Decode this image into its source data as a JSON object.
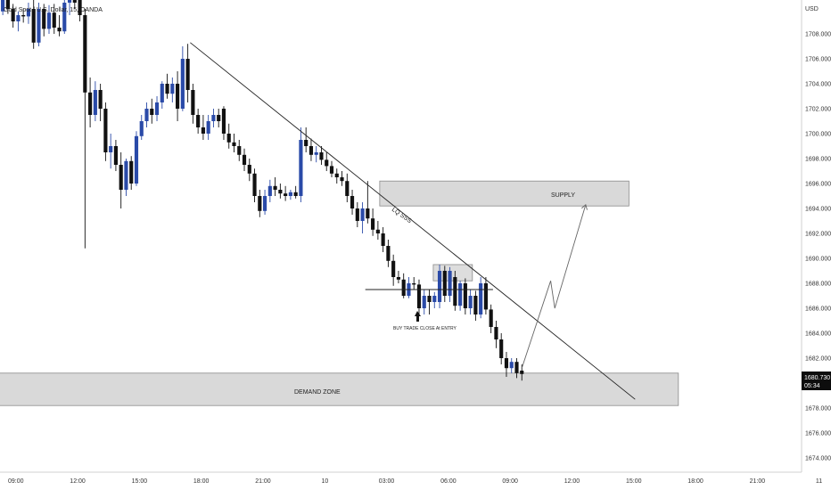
{
  "header": {
    "symbol_title": "Gold Spot / U.S. Dollar, 15, OANDA"
  },
  "price_axis": {
    "currency": "USD",
    "ticks": [
      "1708.000",
      "1706.000",
      "1704.000",
      "1702.000",
      "1700.000",
      "1698.000",
      "1696.000",
      "1694.000",
      "1692.000",
      "1690.000",
      "1688.000",
      "1686.000",
      "1684.000",
      "1682.000",
      "1678.000",
      "1676.000",
      "1674.000"
    ],
    "current_price": "1680.730",
    "countdown": "05:34"
  },
  "time_axis": {
    "ticks": [
      "09:00",
      "12:00",
      "15:00",
      "18:00",
      "21:00",
      "10",
      "03:00",
      "06:00",
      "09:00",
      "12:00",
      "15:00",
      "18:00",
      "21:00",
      "11"
    ]
  },
  "annotations": {
    "supply_label": "SUPPLY",
    "demand_label": "DEMAND ZONE",
    "trendline_label": "LQ SSS",
    "entry_note": "BUY TRADE CLOSE At ENTRY"
  },
  "colors": {
    "up": "#2a4aa8",
    "down": "#111111",
    "zone": "#d9d9d9",
    "zone_border": "#8a8a8a",
    "price_tag": "#0d0d0d"
  },
  "chart_data": {
    "type": "candlestick",
    "title": "Gold Spot / U.S. Dollar, 15, OANDA",
    "y_unit": "USD",
    "ylim": [
      1673,
      1712
    ],
    "candles": [
      [
        1711.2,
        1711.8,
        1709.8,
        1710.5
      ],
      [
        1710.5,
        1711.0,
        1709.2,
        1709.8
      ],
      [
        1709.8,
        1711.5,
        1709.5,
        1711.0
      ],
      [
        1711.0,
        1711.6,
        1709.6,
        1710.0
      ],
      [
        1710.0,
        1710.4,
        1708.5,
        1709.0
      ],
      [
        1709.0,
        1709.8,
        1708.2,
        1709.5
      ],
      [
        1709.5,
        1710.0,
        1708.9,
        1709.4
      ],
      [
        1709.4,
        1710.5,
        1708.8,
        1710.0
      ],
      [
        1710.0,
        1711.0,
        1706.8,
        1707.3
      ],
      [
        1707.3,
        1710.5,
        1707.0,
        1710.0
      ],
      [
        1710.0,
        1710.4,
        1707.8,
        1708.4
      ],
      [
        1708.4,
        1710.3,
        1708.0,
        1709.7
      ],
      [
        1709.7,
        1710.4,
        1708.0,
        1708.5
      ],
      [
        1708.5,
        1709.5,
        1707.8,
        1708.2
      ],
      [
        1708.2,
        1710.8,
        1708.0,
        1710.5
      ],
      [
        1710.5,
        1711.5,
        1709.5,
        1711.0
      ],
      [
        1711.0,
        1711.8,
        1710.0,
        1710.5
      ],
      [
        1711.0,
        1711.5,
        1709.0,
        1709.5
      ],
      [
        1709.5,
        1710.0,
        1690.8,
        1703.3
      ],
      [
        1703.3,
        1704.5,
        1700.5,
        1701.5
      ],
      [
        1701.5,
        1704.2,
        1701.0,
        1703.5
      ],
      [
        1703.5,
        1704.0,
        1701.0,
        1702.0
      ],
      [
        1702.0,
        1702.5,
        1697.8,
        1698.5
      ],
      [
        1698.5,
        1700.0,
        1697.2,
        1699.0
      ],
      [
        1699.0,
        1699.5,
        1697.0,
        1697.5
      ],
      [
        1697.5,
        1698.5,
        1694.0,
        1695.5
      ],
      [
        1695.5,
        1698.0,
        1695.0,
        1697.8
      ],
      [
        1697.8,
        1698.2,
        1695.5,
        1696.0
      ],
      [
        1696.0,
        1700.2,
        1695.8,
        1699.8
      ],
      [
        1699.8,
        1701.5,
        1699.5,
        1701.0
      ],
      [
        1701.0,
        1702.5,
        1700.5,
        1702.0
      ],
      [
        1702.0,
        1702.8,
        1700.8,
        1701.5
      ],
      [
        1701.5,
        1703.0,
        1701.0,
        1702.5
      ],
      [
        1702.5,
        1704.2,
        1702.0,
        1704.0
      ],
      [
        1704.0,
        1704.8,
        1702.8,
        1703.2
      ],
      [
        1703.2,
        1704.5,
        1702.5,
        1704.0
      ],
      [
        1704.0,
        1705.0,
        1701.0,
        1702.0
      ],
      [
        1702.0,
        1707.0,
        1701.8,
        1706.0
      ],
      [
        1706.0,
        1707.2,
        1702.5,
        1703.5
      ],
      [
        1703.5,
        1704.0,
        1700.8,
        1701.5
      ],
      [
        1701.5,
        1702.0,
        1700.0,
        1700.5
      ],
      [
        1700.5,
        1701.5,
        1699.5,
        1700.0
      ],
      [
        1700.0,
        1701.5,
        1699.5,
        1701.0
      ],
      [
        1701.0,
        1702.0,
        1700.5,
        1701.5
      ],
      [
        1701.5,
        1702.0,
        1700.5,
        1701.0
      ],
      [
        1702.0,
        1702.2,
        1699.5,
        1700.0
      ],
      [
        1700.0,
        1700.8,
        1698.8,
        1699.3
      ],
      [
        1699.3,
        1700.0,
        1698.5,
        1699.0
      ],
      [
        1699.0,
        1699.5,
        1697.8,
        1698.3
      ],
      [
        1698.3,
        1698.8,
        1697.0,
        1697.5
      ],
      [
        1697.5,
        1698.0,
        1696.2,
        1696.8
      ],
      [
        1696.8,
        1697.2,
        1694.5,
        1695.0
      ],
      [
        1695.0,
        1695.5,
        1693.3,
        1693.8
      ],
      [
        1693.8,
        1695.5,
        1693.5,
        1695.0
      ],
      [
        1695.0,
        1696.3,
        1694.5,
        1695.8
      ],
      [
        1695.8,
        1696.5,
        1695.0,
        1695.5
      ],
      [
        1695.5,
        1696.0,
        1694.8,
        1695.2
      ],
      [
        1695.2,
        1695.8,
        1694.6,
        1695.0
      ],
      [
        1695.0,
        1695.5,
        1694.7,
        1695.3
      ],
      [
        1695.3,
        1695.8,
        1694.8,
        1695.0
      ],
      [
        1695.0,
        1700.5,
        1694.5,
        1699.5
      ],
      [
        1699.5,
        1700.5,
        1698.5,
        1699.0
      ],
      [
        1699.0,
        1699.6,
        1697.8,
        1698.3
      ],
      [
        1698.3,
        1699.0,
        1697.7,
        1698.5
      ],
      [
        1698.5,
        1699.0,
        1697.5,
        1697.9
      ],
      [
        1697.9,
        1698.5,
        1697.0,
        1697.4
      ],
      [
        1697.4,
        1697.8,
        1696.5,
        1696.8
      ],
      [
        1696.8,
        1697.2,
        1696.0,
        1696.5
      ],
      [
        1696.5,
        1697.0,
        1695.8,
        1696.2
      ],
      [
        1696.2,
        1696.8,
        1694.5,
        1695.0
      ],
      [
        1695.0,
        1695.5,
        1693.5,
        1694.0
      ],
      [
        1694.0,
        1694.5,
        1692.5,
        1693.0
      ],
      [
        1693.0,
        1694.5,
        1692.0,
        1694.0
      ],
      [
        1694.0,
        1696.2,
        1692.8,
        1693.2
      ],
      [
        1693.2,
        1694.0,
        1691.8,
        1692.3
      ],
      [
        1692.3,
        1693.0,
        1691.5,
        1692.0
      ],
      [
        1692.0,
        1692.5,
        1690.5,
        1691.0
      ],
      [
        1691.0,
        1691.5,
        1689.3,
        1689.8
      ],
      [
        1689.8,
        1690.3,
        1687.8,
        1688.5
      ],
      [
        1688.5,
        1689.0,
        1688.0,
        1688.3
      ],
      [
        1688.3,
        1688.8,
        1686.8,
        1687.0
      ],
      [
        1687.0,
        1688.5,
        1686.8,
        1688.0
      ],
      [
        1688.0,
        1688.5,
        1687.5,
        1687.9
      ],
      [
        1687.9,
        1688.3,
        1685.5,
        1686.0
      ],
      [
        1686.0,
        1687.5,
        1685.5,
        1687.0
      ],
      [
        1687.0,
        1687.5,
        1685.5,
        1686.5
      ],
      [
        1686.5,
        1687.3,
        1686.0,
        1687.0
      ],
      [
        1686.5,
        1689.5,
        1686.0,
        1689.0
      ],
      [
        1689.0,
        1689.4,
        1686.5,
        1687.0
      ],
      [
        1687.0,
        1689.3,
        1686.5,
        1689.0
      ],
      [
        1688.5,
        1689.0,
        1685.8,
        1686.2
      ],
      [
        1686.2,
        1688.2,
        1685.8,
        1688.0
      ],
      [
        1688.0,
        1688.4,
        1685.5,
        1686.0
      ],
      [
        1686.0,
        1687.5,
        1685.5,
        1687.0
      ],
      [
        1687.0,
        1687.4,
        1685.0,
        1685.5
      ],
      [
        1685.5,
        1688.5,
        1685.2,
        1688.0
      ],
      [
        1688.0,
        1688.5,
        1685.5,
        1685.9
      ],
      [
        1685.9,
        1686.3,
        1684.0,
        1684.5
      ],
      [
        1684.5,
        1685.0,
        1682.8,
        1683.5
      ],
      [
        1683.5,
        1684.0,
        1681.5,
        1682.0
      ],
      [
        1682.0,
        1682.5,
        1680.5,
        1681.2
      ],
      [
        1681.2,
        1682.0,
        1680.8,
        1681.7
      ],
      [
        1681.7,
        1682.0,
        1680.4,
        1680.8
      ],
      [
        1681.0,
        1681.5,
        1680.2,
        1680.73
      ]
    ],
    "candle_x_range_hours": [
      -1.1,
      24.6
    ],
    "zones": [
      {
        "name": "SUPPLY",
        "from": 1694.2,
        "to": 1696.2,
        "x_hours": [
          17.7,
          29.8
        ]
      },
      {
        "name": "DEMAND ZONE",
        "from": 1678.2,
        "to": 1680.8,
        "x_hours": [
          -1.5,
          32.2
        ]
      },
      {
        "name": "range",
        "from": 1688.2,
        "to": 1689.5,
        "x_hours": [
          20.3,
          22.2
        ]
      }
    ],
    "trendline": {
      "label": "LQ SSS",
      "points": [
        [
          8.5,
          1707.3
        ],
        [
          30.1,
          1678.7
        ]
      ]
    },
    "neckline": {
      "points": [
        [
          17.0,
          1687.5
        ],
        [
          23.2,
          1687.5
        ]
      ]
    },
    "projection": {
      "points": [
        [
          24.6,
          1681.2
        ],
        [
          26.0,
          1688.2
        ],
        [
          26.2,
          1686.0
        ],
        [
          27.7,
          1694.3
        ]
      ]
    },
    "current_price": 1680.73,
    "x_ticks": [
      "09:00",
      "12:00",
      "15:00",
      "18:00",
      "21:00",
      "10",
      "03:00",
      "06:00",
      "09:00",
      "12:00",
      "15:00",
      "18:00",
      "21:00",
      "11"
    ],
    "grid": false
  }
}
